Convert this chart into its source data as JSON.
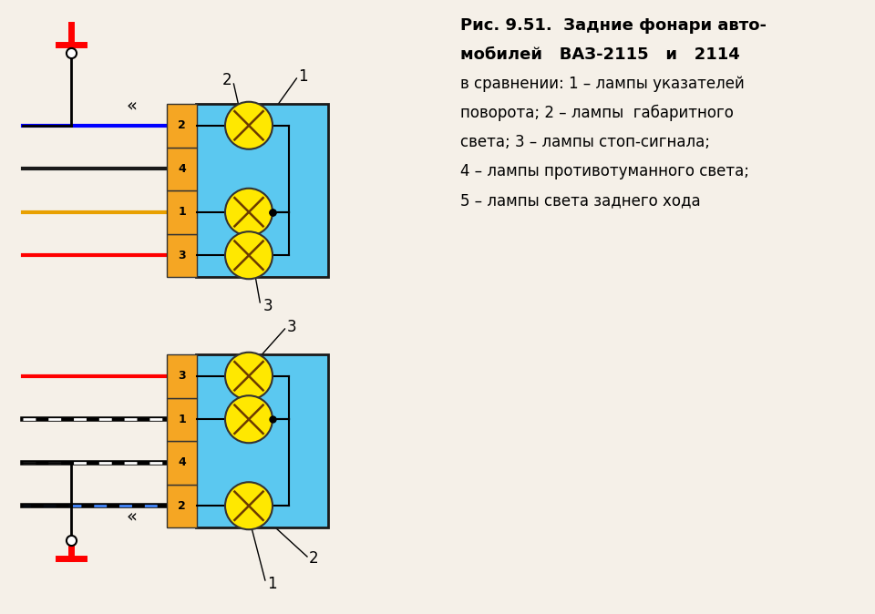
{
  "bg_color": "#f5f0e8",
  "connector_color": "#F5A623",
  "lamp_body_color": "#FFE800",
  "box_color": "#5BC8F0",
  "box_edge_color": "#1a1a1a",
  "title_lines": [
    [
      "Рис. 9.51.  Задние фонари авто-",
      true,
      13
    ],
    [
      "мобилей   ВАЗ-2115   и   2114",
      true,
      13
    ],
    [
      "в сравнении: 1 – лампы указателей",
      false,
      12
    ],
    [
      "поворота; 2 – лампы  габаритного",
      false,
      12
    ],
    [
      "света; 3 – лампы стоп-сигнала;",
      false,
      12
    ],
    [
      "4 – лампы противотуманного света;",
      false,
      12
    ],
    [
      "5 – лампы света заднего хода",
      false,
      12
    ]
  ]
}
